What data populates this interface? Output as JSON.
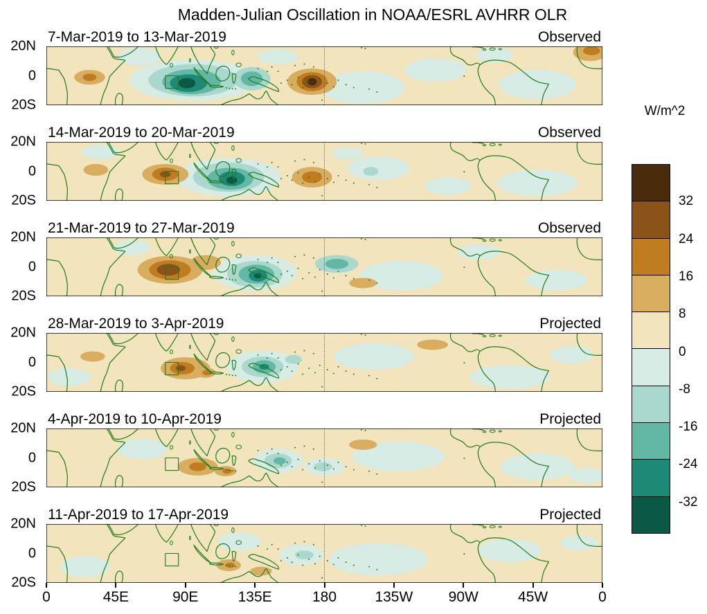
{
  "title": "Madden-Julian Oscillation in NOAA/ESRL AVHRR OLR",
  "colors": {
    "background": "#ffffff",
    "map_background": "#f2e4bc",
    "map_outline": "#1e7b1e",
    "panel_border": "#000000",
    "dateline": "#4a4a4a"
  },
  "colorbar": {
    "label": "W/m^2",
    "tick_values": [
      "32",
      "24",
      "16",
      "8",
      "0",
      "-8",
      "-16",
      "-24",
      "-32"
    ],
    "colors": [
      "#4a2c0c",
      "#8a5418",
      "#c07d1f",
      "#d9ad5f",
      "#f2e4bc",
      "#d8ece6",
      "#abd8cd",
      "#63b8a5",
      "#1d8a75",
      "#0b5847"
    ]
  },
  "axes": {
    "x_ticks": [
      {
        "label": "0",
        "lon": 0
      },
      {
        "label": "45E",
        "lon": 45
      },
      {
        "label": "90E",
        "lon": 90
      },
      {
        "label": "135E",
        "lon": 135
      },
      {
        "label": "180",
        "lon": 180
      },
      {
        "label": "135W",
        "lon": 225
      },
      {
        "label": "90W",
        "lon": 270
      },
      {
        "label": "45W",
        "lon": 315
      },
      {
        "label": "0",
        "lon": 360
      }
    ],
    "y_ticks": [
      "20N",
      "0",
      "20S"
    ]
  },
  "chart_data": {
    "type": "heatmap",
    "title": "Madden-Julian Oscillation in NOAA/ESRL AVHRR OLR",
    "units": "W/m^2",
    "contour_interval": 8,
    "levels": [
      -32,
      -24,
      -16,
      -8,
      0,
      8,
      16,
      24,
      32
    ],
    "lon_range": [
      0,
      360
    ],
    "lat_range": [
      -20,
      20
    ],
    "legend_position": "right",
    "blob_format": "[lon_deg, lat_deg_north_positive, radius_lon_deg, radius_lat_deg, colorbar_color_index] approximating OLR anomaly contour fills; color index 0 = >32 W/m^2 (dark brown) ... 9 = <-32 W/m^2 (dark teal)",
    "panels": [
      {
        "date_range": "7-Mar-2019 to 13-Mar-2019",
        "status": "Observed",
        "blobs": [
          [
            60,
            13,
            14,
            6,
            5
          ],
          [
            150,
            13,
            13,
            5,
            5
          ],
          [
            205,
            -8,
            27,
            11,
            5
          ],
          [
            252,
            4,
            20,
            8,
            5
          ],
          [
            318,
            -6,
            25,
            10,
            5
          ],
          [
            290,
            14,
            12,
            5,
            5
          ],
          [
            95,
            -3,
            41,
            14,
            5
          ],
          [
            95,
            -3,
            29,
            11,
            6
          ],
          [
            94,
            -4,
            19,
            8.5,
            7
          ],
          [
            92,
            -5,
            12,
            6,
            8
          ],
          [
            91,
            -5,
            5.5,
            3.5,
            9
          ],
          [
            133,
            -2,
            12,
            8,
            6
          ],
          [
            133,
            -2,
            7,
            5,
            7
          ],
          [
            28,
            -1,
            10,
            5,
            3
          ],
          [
            28,
            -1,
            4.5,
            2.5,
            2
          ],
          [
            172,
            -4,
            16,
            9,
            3
          ],
          [
            172,
            -4,
            10,
            6.5,
            2
          ],
          [
            172,
            -4,
            6.5,
            4.5,
            1
          ],
          [
            172,
            -4,
            3,
            2.5,
            0
          ],
          [
            352,
            16,
            11,
            6,
            3
          ],
          [
            353,
            17,
            5.5,
            3,
            2
          ]
        ]
      },
      {
        "date_range": "14-Mar-2019 to 20-Mar-2019",
        "status": "Observed",
        "blobs": [
          [
            215,
            2,
            20,
            8,
            5
          ],
          [
            318,
            -8,
            26,
            9,
            5
          ],
          [
            260,
            -10,
            15,
            6,
            5
          ],
          [
            35,
            13,
            12,
            5,
            5
          ],
          [
            195,
            12,
            10,
            4,
            5
          ],
          [
            118,
            -4,
            34,
            13,
            5
          ],
          [
            118,
            -4,
            23,
            10,
            6
          ],
          [
            119,
            -5,
            15,
            7.5,
            7
          ],
          [
            120,
            -5,
            8.5,
            5,
            8
          ],
          [
            120,
            -6,
            3.5,
            2.5,
            9
          ],
          [
            32,
            1,
            8,
            4,
            3
          ],
          [
            77,
            -2,
            15,
            7,
            3
          ],
          [
            77,
            -2,
            8.5,
            4.5,
            2
          ],
          [
            77,
            -2,
            3.5,
            2.2,
            1
          ],
          [
            172,
            -4,
            13,
            7,
            3
          ],
          [
            172,
            -4,
            6.5,
            4,
            2
          ],
          [
            210,
            0,
            5,
            3,
            6
          ]
        ]
      },
      {
        "date_range": "21-Mar-2019 to 27-Mar-2019",
        "status": "Observed",
        "blobs": [
          [
            230,
            -6,
            27,
            10,
            5
          ],
          [
            330,
            -9,
            20,
            7,
            5
          ],
          [
            55,
            13,
            12,
            5,
            5
          ],
          [
            280,
            10,
            14,
            5,
            5
          ],
          [
            135,
            -4,
            27,
            12,
            5
          ],
          [
            135,
            -5,
            18,
            9,
            6
          ],
          [
            136,
            -5,
            11.5,
            6.5,
            7
          ],
          [
            137,
            -6,
            6,
            4,
            8
          ],
          [
            137,
            -6,
            2.5,
            1.8,
            9
          ],
          [
            188,
            2,
            14,
            6,
            6
          ],
          [
            188,
            2,
            7.5,
            3.5,
            7
          ],
          [
            103,
            3,
            10,
            5,
            3
          ],
          [
            205,
            -11,
            9,
            3.5,
            3
          ],
          [
            80,
            -2,
            21,
            9.5,
            3
          ],
          [
            80,
            -2,
            13.5,
            6.5,
            2
          ],
          [
            79,
            -2,
            7.5,
            4,
            1
          ]
        ]
      },
      {
        "date_range": "28-Mar-2019 to 3-Apr-2019",
        "status": "Projected",
        "blobs": [
          [
            212,
            4,
            26,
            9,
            5
          ],
          [
            300,
            -10,
            26,
            8,
            5
          ],
          [
            15,
            -10,
            14,
            6,
            5
          ],
          [
            340,
            5,
            14,
            6,
            5
          ],
          [
            140,
            -3,
            23,
            11,
            5
          ],
          [
            140,
            -3,
            13.5,
            7,
            6
          ],
          [
            141,
            -3,
            7.5,
            4.5,
            7
          ],
          [
            141,
            -3,
            3.2,
            2,
            8
          ],
          [
            160,
            2,
            5.5,
            3,
            6
          ],
          [
            30,
            4,
            8,
            3.5,
            3
          ],
          [
            90,
            -4,
            16,
            7.5,
            3
          ],
          [
            88,
            -4,
            8,
            4.2,
            2
          ],
          [
            87,
            -4,
            3.2,
            2,
            1
          ],
          [
            103,
            -7,
            6.5,
            3.5,
            3
          ],
          [
            104,
            -7,
            3,
            1.8,
            2
          ],
          [
            250,
            12,
            10,
            3.5,
            3
          ]
        ]
      },
      {
        "date_range": "4-Apr-2019 to 10-Apr-2019",
        "status": "Projected",
        "blobs": [
          [
            228,
            1,
            30,
            10,
            5
          ],
          [
            318,
            -6,
            24,
            9,
            5
          ],
          [
            62,
            6,
            16,
            7,
            5
          ],
          [
            350,
            -12,
            12,
            5,
            5
          ],
          [
            150,
            -2,
            16,
            8,
            5
          ],
          [
            150,
            -2,
            9,
            5,
            6
          ],
          [
            151,
            -2,
            4,
            2.5,
            7
          ],
          [
            180,
            -6,
            13,
            6,
            5
          ],
          [
            179,
            -6,
            6,
            3,
            6
          ],
          [
            98,
            -6,
            13,
            6,
            3
          ],
          [
            98,
            -6,
            5.5,
            3,
            2
          ],
          [
            116,
            -9,
            7,
            3.5,
            3
          ],
          [
            117,
            -9,
            3,
            1.8,
            2
          ],
          [
            205,
            9,
            9,
            3.5,
            3
          ]
        ]
      },
      {
        "date_range": "11-Apr-2019 to 17-Apr-2019",
        "status": "Projected",
        "blobs": [
          [
            215,
            -4,
            32,
            11,
            5
          ],
          [
            300,
            2,
            20,
            8,
            5
          ],
          [
            25,
            -9,
            16,
            7,
            5
          ],
          [
            345,
            7,
            12,
            5,
            5
          ],
          [
            125,
            8,
            14,
            6,
            5
          ],
          [
            165,
            -1,
            14,
            7,
            5
          ],
          [
            167,
            -1,
            6,
            3,
            6
          ],
          [
            118,
            -8,
            8,
            4,
            3
          ],
          [
            119,
            -8,
            3,
            1.8,
            2
          ],
          [
            139,
            -12,
            7,
            3,
            3
          ]
        ]
      }
    ]
  }
}
